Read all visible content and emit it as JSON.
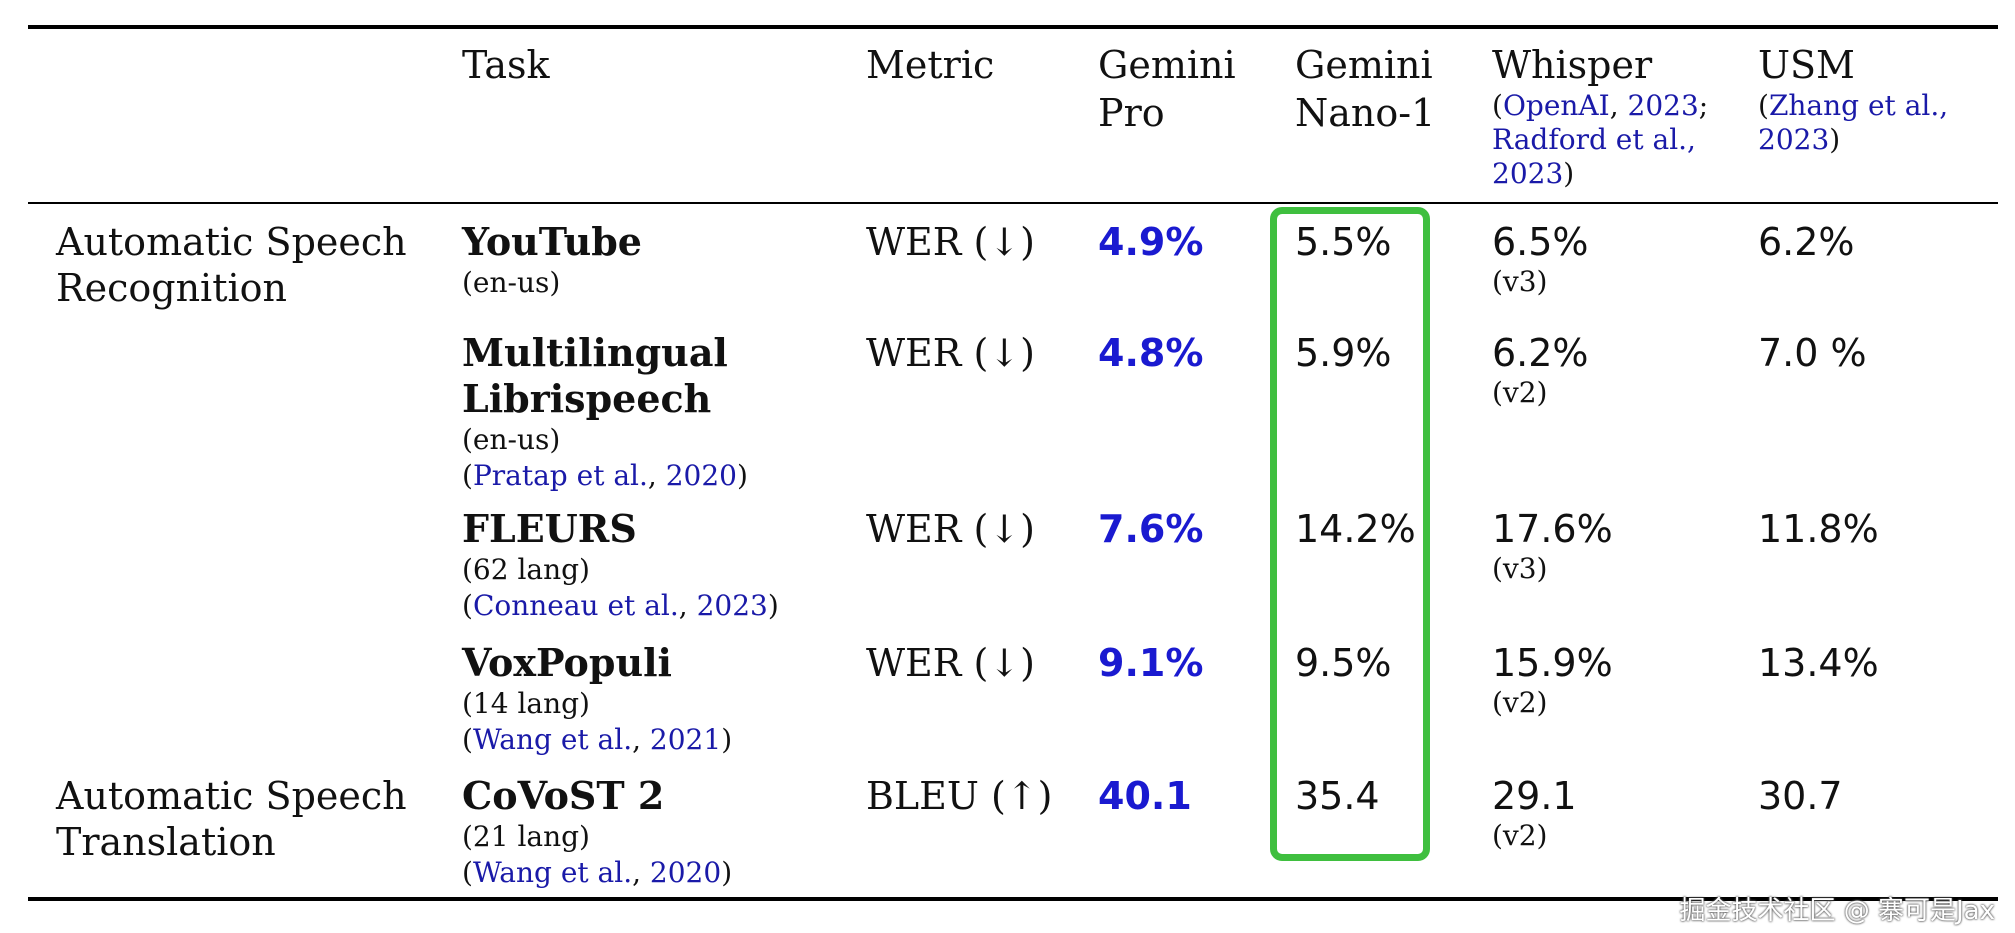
{
  "header": {
    "task": "Task",
    "metric": "Metric",
    "gemini_pro": [
      "Gemini",
      "Pro"
    ],
    "gemini_nano": [
      "Gemini",
      "Nano-1"
    ],
    "whisper": "Whisper",
    "whisper_cite": {
      "l1_a": "OpenAI",
      "l1_b": "2023",
      "l2_a": "Radford et al.,",
      "l3": "2023"
    },
    "usm": "USM",
    "usm_cite": {
      "l1": "Zhang et al.,",
      "l2": "2023"
    }
  },
  "rows": [
    {
      "category": [
        "Automatic Speech",
        "Recognition"
      ],
      "task": "YouTube",
      "task_sub": "(en-us)",
      "cite_name": "",
      "cite_year": "",
      "metric": "WER (↓)",
      "gemini_pro": "4.9%",
      "gemini_nano": "5.5%",
      "whisper": "6.5%",
      "whisper_ver": "(v3)",
      "usm": "6.2%"
    },
    {
      "category": [
        "",
        ""
      ],
      "task": [
        "Multilingual",
        "Librispeech"
      ],
      "task_sub": "(en-us)",
      "cite_name": "Pratap et al.",
      "cite_year": "2020",
      "metric": "WER (↓)",
      "gemini_pro": "4.8%",
      "gemini_nano": "5.9%",
      "whisper": "6.2%",
      "whisper_ver": "(v2)",
      "usm": "7.0 %"
    },
    {
      "category": [
        "",
        ""
      ],
      "task": "FLEURS",
      "task_sub": "(62 lang)",
      "cite_name": "Conneau et al.",
      "cite_year": "2023",
      "metric": "WER (↓)",
      "gemini_pro": "7.6%",
      "gemini_nano": "14.2%",
      "whisper": "17.6%",
      "whisper_ver": "(v3)",
      "usm": "11.8%"
    },
    {
      "category": [
        "",
        ""
      ],
      "task": "VoxPopuli",
      "task_sub": "(14 lang)",
      "cite_name": "Wang et al.",
      "cite_year": "2021",
      "metric": "WER (↓)",
      "gemini_pro": "9.1%",
      "gemini_nano": "9.5%",
      "whisper": "15.9%",
      "whisper_ver": "(v2)",
      "usm": "13.4%"
    },
    {
      "category": [
        "Automatic Speech",
        "Translation"
      ],
      "task": "CoVoST 2",
      "task_sub": "(21 lang)",
      "cite_name": "Wang et al.",
      "cite_year": "2020",
      "metric": "BLEU (↑)",
      "gemini_pro": "40.1",
      "gemini_nano": "35.4",
      "whisper": "29.1",
      "whisper_ver": "(v2)",
      "usm": "30.7"
    }
  ],
  "watermark": "掘金技术社区 @ 寨可是Jax",
  "colors": {
    "highlight_border": "#3fbf3f",
    "best_value": "#1a1ad0",
    "citation": "#1a1aa8"
  }
}
